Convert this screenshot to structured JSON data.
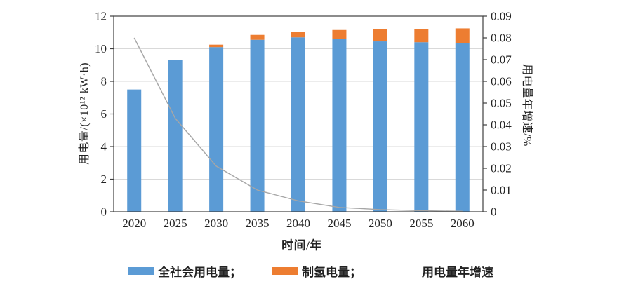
{
  "colors": {
    "bar_blue": "#5b9bd5",
    "bar_orange": "#ed7d31",
    "line_gray": "#a6a6a6",
    "grid_gray": "#d9d9d9",
    "axis_black": "#404040",
    "text": "#222222"
  },
  "chart_data": {
    "type": "bar",
    "subtype": "stacked-bars-with-line",
    "categories": [
      "2020",
      "2025",
      "2030",
      "2035",
      "2040",
      "2045",
      "2050",
      "2055",
      "2060"
    ],
    "series": [
      {
        "name": "全社会用电量",
        "type": "bar",
        "axis": "left",
        "values": [
          7.5,
          9.3,
          10.1,
          10.55,
          10.7,
          10.6,
          10.45,
          10.4,
          10.35
        ]
      },
      {
        "name": "制氢电量",
        "type": "bar",
        "axis": "left",
        "values": [
          0,
          0,
          0.15,
          0.3,
          0.35,
          0.55,
          0.75,
          0.8,
          0.9
        ]
      },
      {
        "name": "用电量年增速",
        "type": "line",
        "axis": "right",
        "values": [
          0.08,
          0.043,
          0.021,
          0.01,
          0.005,
          0.002,
          0.001,
          0.0005,
          0.0002
        ]
      }
    ],
    "title": "",
    "xlabel": "时间/年",
    "ylabel_left": "用电量/(×10¹² kW·h)",
    "ylabel_right": "用电量年增速/%",
    "ylim_left": [
      0,
      12
    ],
    "ylim_right": [
      0,
      0.09
    ],
    "yticks_left": [
      "0",
      "2",
      "4",
      "6",
      "8",
      "10",
      "12"
    ],
    "yticks_right": [
      "0",
      "0.01",
      "0.02",
      "0.03",
      "0.04",
      "0.05",
      "0.06",
      "0.07",
      "0.08",
      "0.09"
    ],
    "grid": "horizontal",
    "legend_position": "bottom"
  },
  "legend": {
    "items": [
      {
        "label": "全社会用电量；",
        "swatch": "blue-rect"
      },
      {
        "label": "制氢电量；",
        "swatch": "orange-rect"
      },
      {
        "label": "用电量年增速",
        "swatch": "gray-line"
      }
    ]
  }
}
